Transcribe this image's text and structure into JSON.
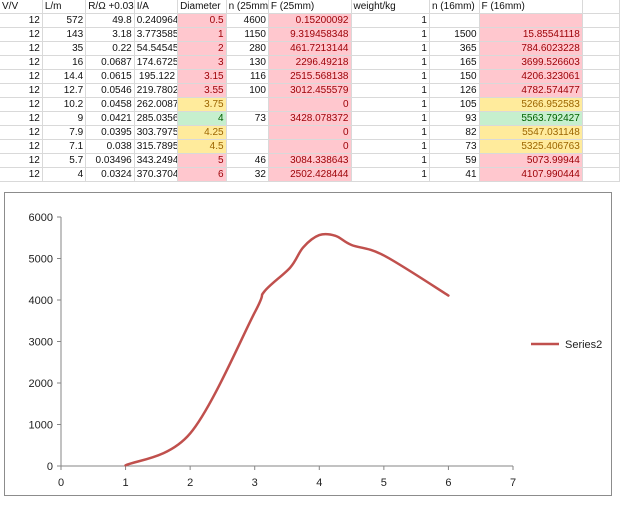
{
  "sheet": {
    "headers": [
      "V/V",
      "L/m",
      "R/Ω +0.03",
      "I/A",
      "Diameter",
      "n (25mm)",
      "F (25mm)",
      "weight/kg",
      "n (16mm)",
      "F (16mm)"
    ],
    "rows": [
      {
        "v": "12",
        "l": "572",
        "r": "49.8",
        "i": "0.240964",
        "d": "0.5",
        "n25": "4600",
        "f25": "0.15200092",
        "w": "1",
        "n16": "",
        "f16": ""
      },
      {
        "v": "12",
        "l": "143",
        "r": "3.18",
        "i": "3.773585",
        "d": "1",
        "n25": "1150",
        "f25": "9.319458348",
        "w": "1",
        "n16": "1500",
        "f16": "15.85541118"
      },
      {
        "v": "12",
        "l": "35",
        "r": "0.22",
        "i": "54.54545",
        "d": "2",
        "n25": "280",
        "f25": "461.7213144",
        "w": "1",
        "n16": "365",
        "f16": "784.6023228"
      },
      {
        "v": "12",
        "l": "16",
        "r": "0.0687",
        "i": "174.6725",
        "d": "3",
        "n25": "130",
        "f25": "2296.49218",
        "w": "1",
        "n16": "165",
        "f16": "3699.526603"
      },
      {
        "v": "12",
        "l": "14.4",
        "r": "0.0615",
        "i": "195.122",
        "d": "3.15",
        "n25": "116",
        "f25": "2515.568138",
        "w": "1",
        "n16": "150",
        "f16": "4206.323061"
      },
      {
        "v": "12",
        "l": "12.7",
        "r": "0.0546",
        "i": "219.7802",
        "d": "3.55",
        "n25": "100",
        "f25": "3012.455579",
        "w": "1",
        "n16": "126",
        "f16": "4782.574477"
      },
      {
        "v": "12",
        "l": "10.2",
        "r": "0.0458",
        "i": "262.0087",
        "d": "3.75",
        "n25": "",
        "f25": "0",
        "w": "1",
        "n16": "105",
        "f16": "5266.952583"
      },
      {
        "v": "12",
        "l": "9",
        "r": "0.0421",
        "i": "285.0356",
        "d": "4",
        "n25": "73",
        "f25": "3428.078372",
        "w": "1",
        "n16": "93",
        "f16": "5563.792427"
      },
      {
        "v": "12",
        "l": "7.9",
        "r": "0.0395",
        "i": "303.7975",
        "d": "4.25",
        "n25": "",
        "f25": "0",
        "w": "1",
        "n16": "82",
        "f16": "5547.031148"
      },
      {
        "v": "12",
        "l": "7.1",
        "r": "0.038",
        "i": "315.7895",
        "d": "4.5",
        "n25": "",
        "f25": "0",
        "w": "1",
        "n16": "73",
        "f16": "5325.406763"
      },
      {
        "v": "12",
        "l": "5.7",
        "r": "0.03496",
        "i": "343.2494",
        "d": "5",
        "n25": "46",
        "f25": "3084.338643",
        "w": "1",
        "n16": "59",
        "f16": "5073.99944"
      },
      {
        "v": "12",
        "l": "4",
        "r": "0.0324",
        "i": "370.3704",
        "d": "6",
        "n25": "32",
        "f25": "2502.428444",
        "w": "1",
        "n16": "41",
        "f16": "4107.990444"
      }
    ],
    "highlight": {
      "diameter": [
        "pink",
        "pink",
        "pink",
        "pink",
        "pink",
        "pink",
        "yellow",
        "green",
        "yellow",
        "yellow",
        "pink",
        "pink"
      ],
      "f25": [
        "pink",
        "pink",
        "pink",
        "pink",
        "pink",
        "pink",
        "pink",
        "pink",
        "pink",
        "pink",
        "pink",
        "pink"
      ],
      "f16": [
        "pink",
        "pink",
        "pink",
        "pink",
        "pink",
        "pink",
        "yellow",
        "green",
        "yellow",
        "yellow",
        "pink",
        "pink"
      ]
    },
    "colors": {
      "pink": "#ffc7ce",
      "yellow": "#ffeb9c",
      "green": "#c6efce"
    }
  },
  "chart_data": {
    "type": "line",
    "title": "",
    "xlabel": "",
    "ylabel": "",
    "xlim": [
      0,
      7
    ],
    "ylim": [
      0,
      6000
    ],
    "x_ticks": [
      "0",
      "1",
      "2",
      "3",
      "4",
      "5",
      "6",
      "7"
    ],
    "y_ticks": [
      "0",
      "1000",
      "2000",
      "3000",
      "4000",
      "5000",
      "6000"
    ],
    "grid": "horizontal",
    "legend_position": "right",
    "series": [
      {
        "name": "Series2",
        "color": "#c0504d",
        "x": [
          1,
          2,
          3,
          3.15,
          3.55,
          3.75,
          4,
          4.25,
          4.5,
          5,
          6
        ],
        "y": [
          15.85541118,
          784.6023228,
          3699.526603,
          4206.323061,
          4782.574477,
          5266.952583,
          5563.792427,
          5547.031148,
          5325.406763,
          5073.99944,
          4107.990444
        ]
      }
    ]
  }
}
